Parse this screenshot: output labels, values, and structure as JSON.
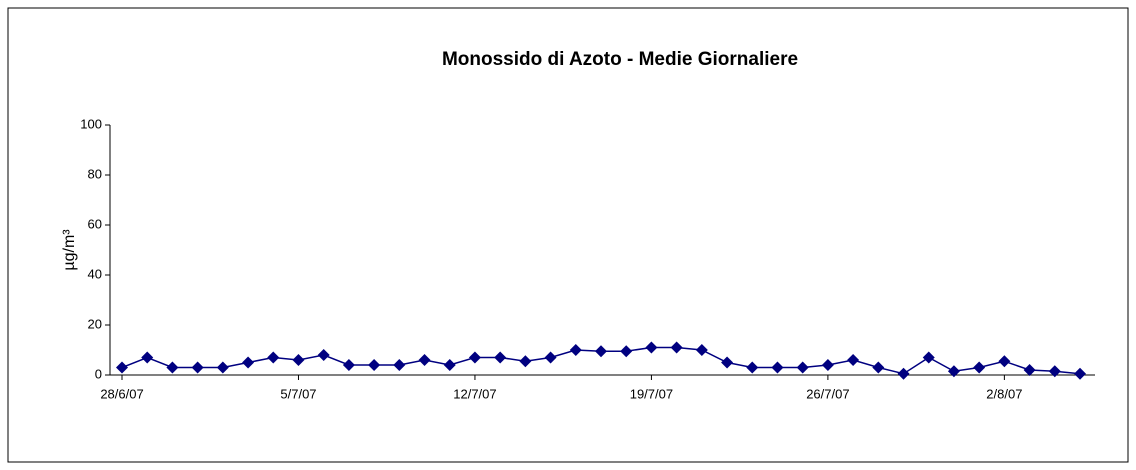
{
  "chart_data": {
    "type": "line",
    "title": "Monossido di Azoto -  Medie Giornaliere",
    "y_label": "µg/m³",
    "categories": [
      "28/6/07",
      null,
      null,
      null,
      null,
      null,
      null,
      "5/7/07",
      null,
      null,
      null,
      null,
      null,
      null,
      "12/7/07",
      null,
      null,
      null,
      null,
      null,
      null,
      "19/7/07",
      null,
      null,
      null,
      null,
      null,
      null,
      "26/7/07",
      null,
      null,
      null,
      null,
      null,
      null,
      "2/8/07",
      null,
      null,
      null
    ],
    "series": [
      {
        "name": "Monossido di Azoto",
        "color": "#000080",
        "values": [
          3,
          7,
          3,
          3,
          3,
          5,
          7,
          6,
          8,
          4,
          4,
          4,
          6,
          4,
          7,
          7,
          5.5,
          7,
          10,
          9.5,
          9.5,
          11,
          11,
          10,
          5,
          3,
          3,
          3,
          4,
          6,
          3,
          0.5,
          7,
          1.5,
          3,
          5.5,
          2,
          1.5,
          0.5
        ]
      }
    ],
    "ylim": [
      0,
      100
    ],
    "yticks": [
      0,
      20,
      40,
      60,
      80,
      100
    ],
    "grid": false,
    "legend": false
  }
}
